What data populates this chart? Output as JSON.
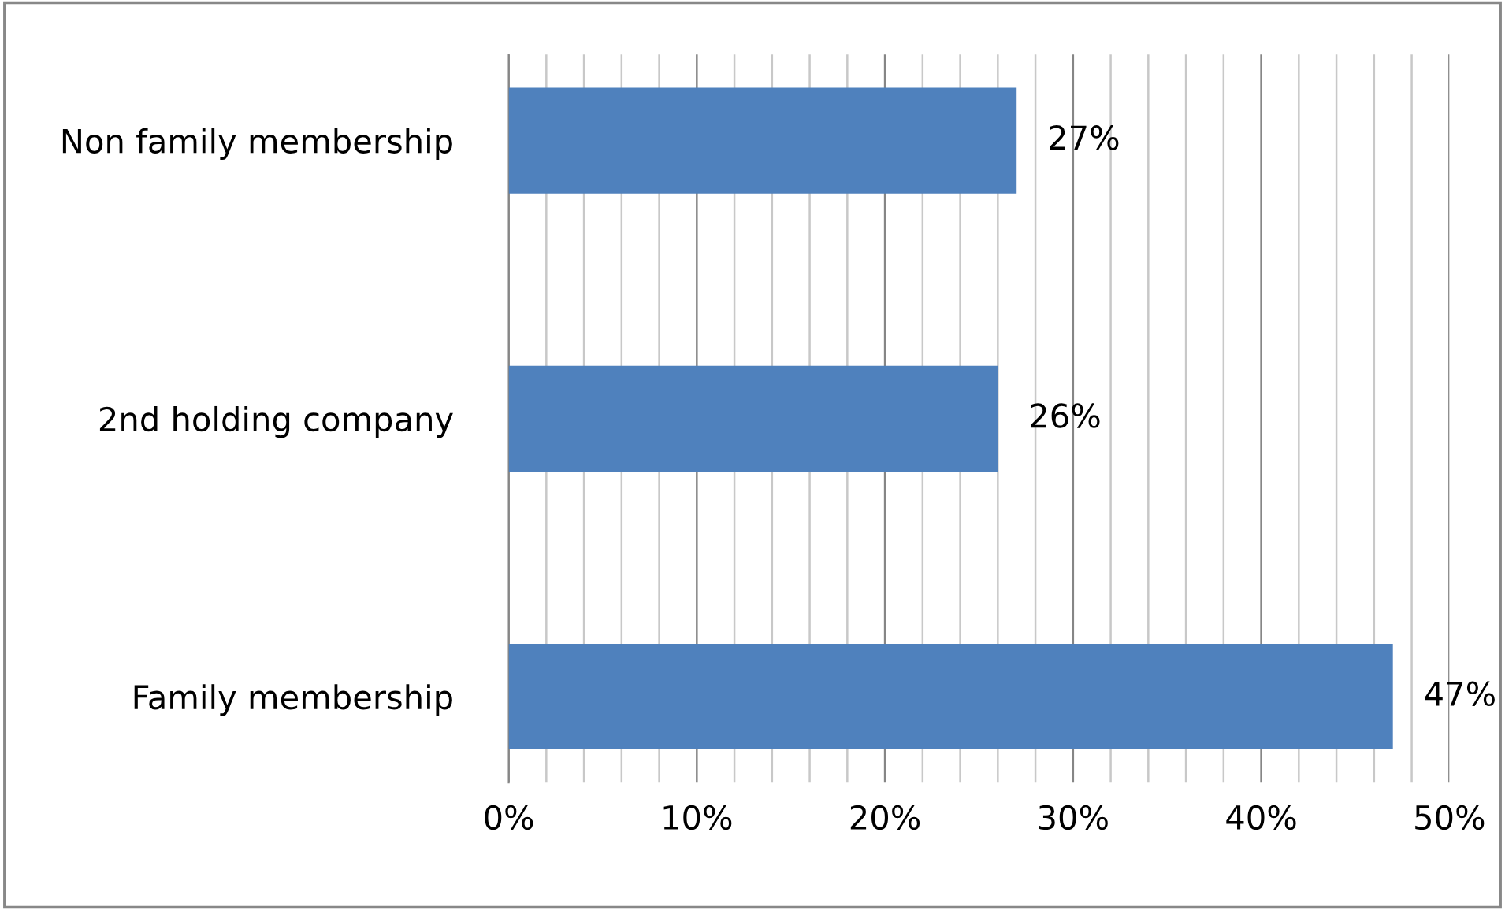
{
  "chart_data": {
    "type": "bar",
    "orientation": "horizontal",
    "categories": [
      "Non family membership",
      "2nd holding company",
      "Family membership"
    ],
    "values": [
      27,
      26,
      47
    ],
    "value_labels": [
      "27%",
      "26%",
      "47%"
    ],
    "color": "#4f81bd",
    "xlim": [
      0,
      50
    ],
    "xticks": [
      {
        "value": 0,
        "label": "0%"
      },
      {
        "value": 2,
        "label": null
      },
      {
        "value": 4,
        "label": null
      },
      {
        "value": 6,
        "label": null
      },
      {
        "value": 8,
        "label": null
      },
      {
        "value": 10,
        "label": "10%"
      },
      {
        "value": 12,
        "label": null
      },
      {
        "value": 14,
        "label": null
      },
      {
        "value": 16,
        "label": null
      },
      {
        "value": 18,
        "label": null
      },
      {
        "value": 20,
        "label": "20%"
      },
      {
        "value": 22,
        "label": null
      },
      {
        "value": 24,
        "label": null
      },
      {
        "value": 26,
        "label": null
      },
      {
        "value": 28,
        "label": null
      },
      {
        "value": 30,
        "label": "30%"
      },
      {
        "value": 32,
        "label": null
      },
      {
        "value": 34,
        "label": null
      },
      {
        "value": 36,
        "label": null
      },
      {
        "value": 38,
        "label": null
      },
      {
        "value": 40,
        "label": "40%"
      },
      {
        "value": 42,
        "label": null
      },
      {
        "value": 44,
        "label": null
      },
      {
        "value": 46,
        "label": null
      },
      {
        "value": 48,
        "label": null
      },
      {
        "value": 50,
        "label": "50%"
      }
    ],
    "grid": "x"
  }
}
